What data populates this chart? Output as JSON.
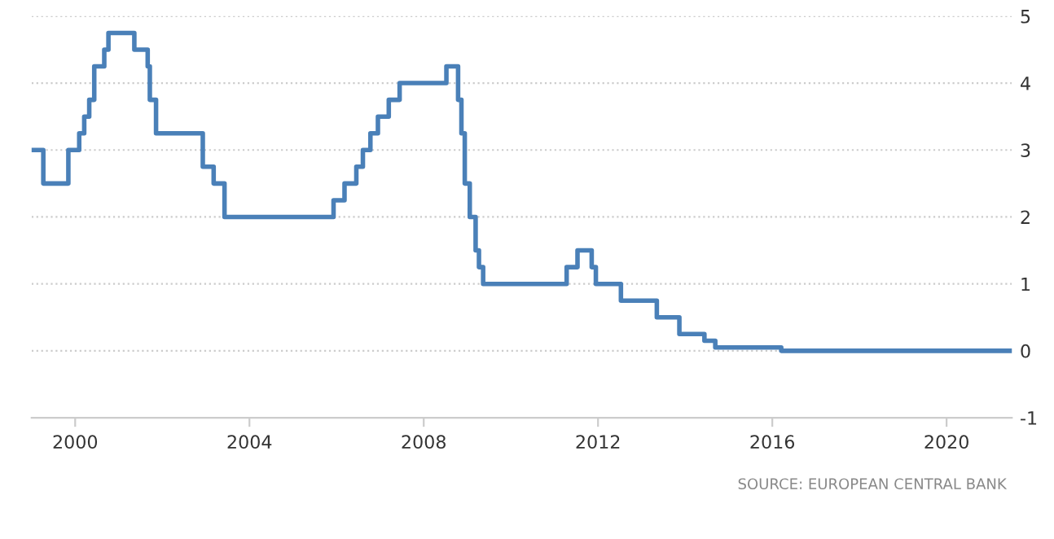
{
  "chart_data": {
    "type": "step",
    "x": [
      "1999-01-01",
      "1999-04-09",
      "1999-11-05",
      "2000-02-04",
      "2000-03-17",
      "2000-04-28",
      "2000-06-09",
      "2000-09-01",
      "2000-10-06",
      "2001-05-11",
      "2001-08-31",
      "2001-09-18",
      "2001-11-09",
      "2002-12-06",
      "2003-03-07",
      "2003-06-06",
      "2005-12-06",
      "2006-03-08",
      "2006-06-15",
      "2006-08-09",
      "2006-10-11",
      "2006-12-13",
      "2007-03-14",
      "2007-06-13",
      "2008-07-09",
      "2008-10-15",
      "2008-11-12",
      "2008-12-10",
      "2009-01-21",
      "2009-03-11",
      "2009-04-08",
      "2009-05-13",
      "2011-04-13",
      "2011-07-13",
      "2011-11-09",
      "2011-12-14",
      "2012-07-11",
      "2013-05-08",
      "2013-11-13",
      "2014-06-11",
      "2014-09-10",
      "2016-03-16",
      "2021-06-30"
    ],
    "series": [
      {
        "color": "#4a80b8",
        "values": [
          3.0,
          2.5,
          3.0,
          3.25,
          3.5,
          3.75,
          4.25,
          4.5,
          4.75,
          4.5,
          4.25,
          3.75,
          3.25,
          2.75,
          2.5,
          2.0,
          2.25,
          2.5,
          2.75,
          3.0,
          3.25,
          3.5,
          3.75,
          4.0,
          4.25,
          3.75,
          3.25,
          2.5,
          2.0,
          1.5,
          1.25,
          1.0,
          1.25,
          1.5,
          1.25,
          1.0,
          0.75,
          0.5,
          0.25,
          0.15,
          0.05,
          0.0,
          0.0
        ]
      }
    ],
    "xlim": [
      "1999-01-01",
      "2021-07-01"
    ],
    "xticks": [
      {
        "value": "2000-01-01",
        "label": "2000"
      },
      {
        "value": "2004-01-01",
        "label": "2004"
      },
      {
        "value": "2008-01-01",
        "label": "2008"
      },
      {
        "value": "2012-01-01",
        "label": "2012"
      },
      {
        "value": "2016-01-01",
        "label": "2016"
      },
      {
        "value": "2020-01-01",
        "label": "2020"
      }
    ],
    "ylim": [
      -1,
      5
    ],
    "yticks": [
      -1,
      0,
      1,
      2,
      3,
      4,
      5
    ],
    "grid": "y",
    "marker": "none",
    "line_style": "solid",
    "annotations": [
      "SOURCE: EUROPEAN CENTRAL BANK"
    ]
  }
}
